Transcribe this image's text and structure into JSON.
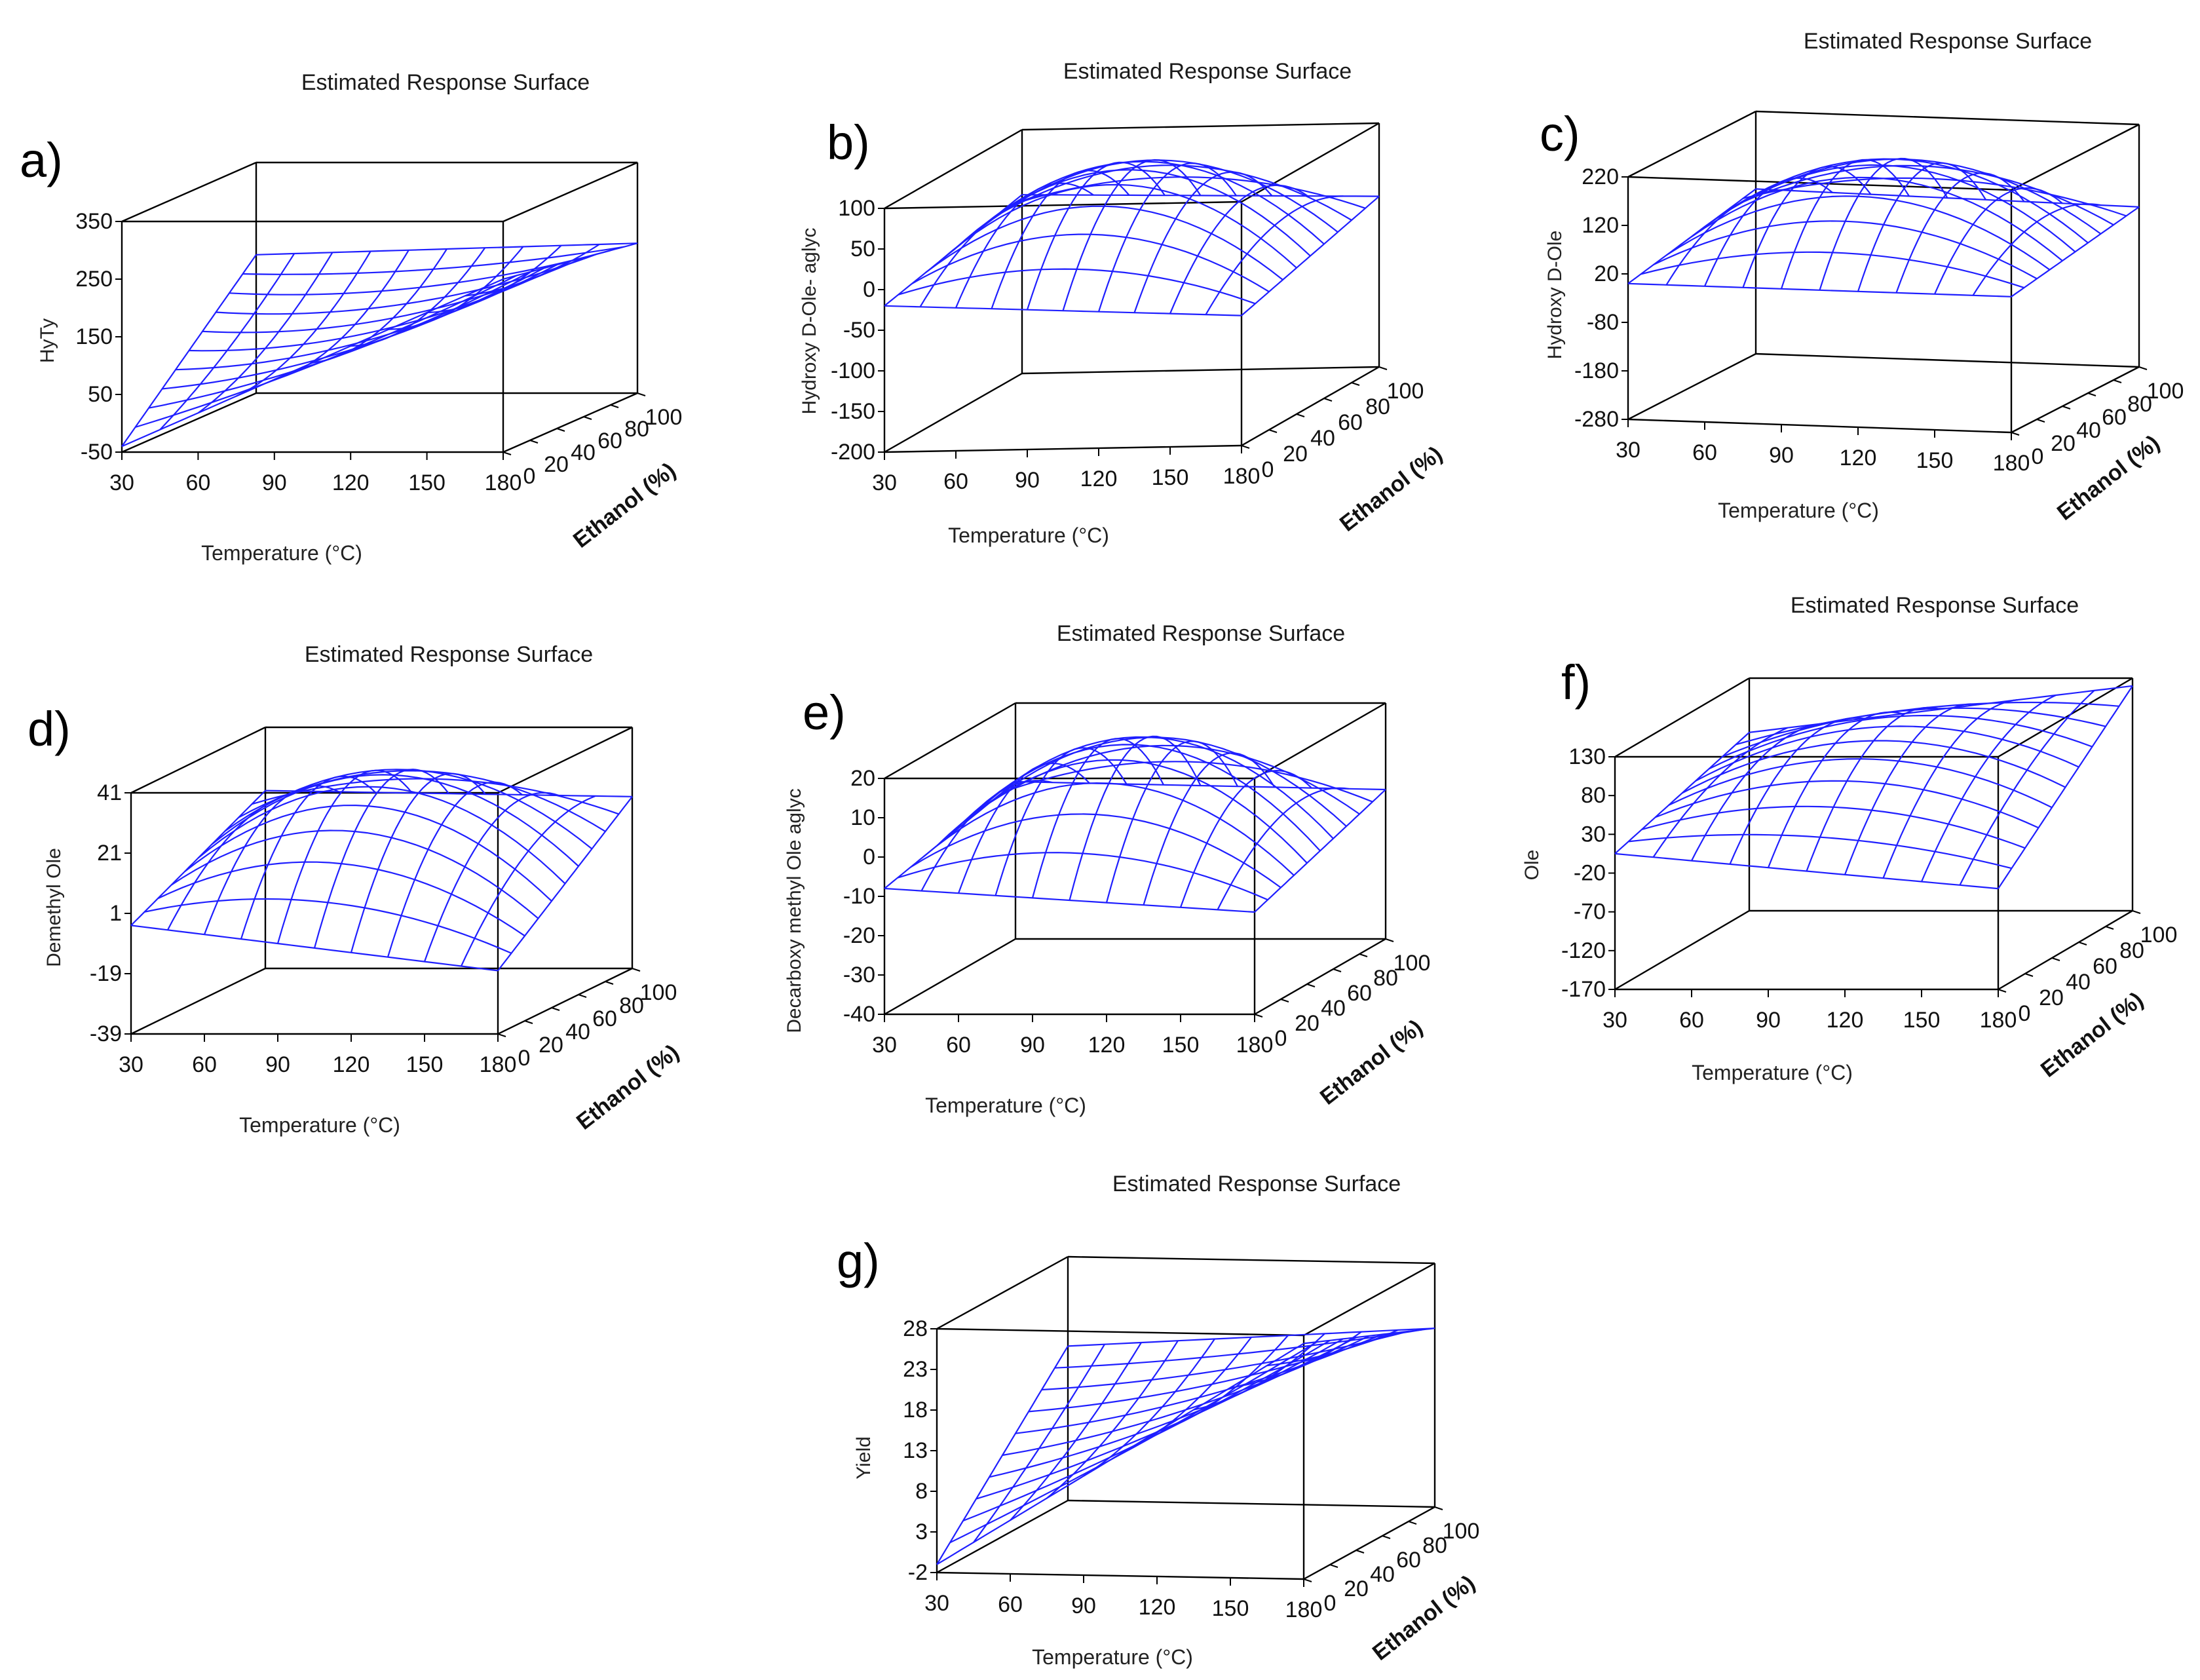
{
  "figure": {
    "background": "#ffffff",
    "mesh_color": "#1f1fff",
    "box_color": "#000000"
  },
  "chart_data": [
    {
      "type": "surface",
      "panel": "a)",
      "title": "Estimated Response Surface",
      "xlabel": "Temperature (°C)",
      "ylabel": "Ethanol (%)",
      "zlabel": "HyTy",
      "xlim": [
        30,
        180
      ],
      "ylim": [
        0,
        100
      ],
      "zlim": [
        -50,
        350
      ],
      "x_ticks": [
        "30",
        "60",
        "90",
        "120",
        "150",
        "180"
      ],
      "y_ticks": [
        "0",
        "20",
        "40",
        "60",
        "80",
        "100"
      ],
      "z_ticks": [
        "-50",
        "50",
        "150",
        "250",
        "350"
      ],
      "z_estimates": {
        "front_left": -40,
        "front_right": 250,
        "back_left": 190,
        "back_right": 210,
        "center": 110
      }
    },
    {
      "type": "surface",
      "panel": "b)",
      "title": "Estimated Response Surface",
      "xlabel": "Temperature (°C)",
      "ylabel": "Ethanol (%)",
      "zlabel": "Hydroxy D-Ole- aglyc",
      "xlim": [
        30,
        180
      ],
      "ylim": [
        0,
        100
      ],
      "zlim": [
        -200,
        100
      ],
      "x_ticks": [
        "30",
        "60",
        "90",
        "120",
        "150",
        "180"
      ],
      "y_ticks": [
        "0",
        "20",
        "40",
        "60",
        "80",
        "100"
      ],
      "z_ticks": [
        "100",
        "50",
        "0",
        "-50",
        "-100",
        "-150",
        "-200"
      ],
      "z_estimates": {
        "front_left": -20,
        "front_right": -40,
        "back_left": 20,
        "back_right": 10,
        "center": 95
      }
    },
    {
      "type": "surface",
      "panel": "c)",
      "title": "Estimated Response Surface",
      "xlabel": "Temperature (°C)",
      "ylabel": "Ethanol (%)",
      "zlabel": "Hydroxy D-Ole",
      "xlim": [
        30,
        180
      ],
      "ylim": [
        0,
        100
      ],
      "zlim": [
        -280,
        220
      ],
      "x_ticks": [
        "30",
        "60",
        "90",
        "120",
        "150",
        "180"
      ],
      "y_ticks": [
        "0",
        "20",
        "40",
        "60",
        "80",
        "100"
      ],
      "z_ticks": [
        "220",
        "120",
        "20",
        "-80",
        "-180",
        "-280"
      ],
      "z_estimates": {
        "front_left": 0,
        "front_right": 0,
        "back_left": 60,
        "back_right": 50,
        "center": 190
      }
    },
    {
      "type": "surface",
      "panel": "d)",
      "title": "Estimated Response Surface",
      "xlabel": "Temperature (°C)",
      "ylabel": "Ethanol (%)",
      "zlabel": "Demethyl Ole",
      "xlim": [
        30,
        180
      ],
      "ylim": [
        0,
        100
      ],
      "zlim": [
        -39,
        41
      ],
      "x_ticks": [
        "30",
        "60",
        "90",
        "120",
        "150",
        "180"
      ],
      "y_ticks": [
        "0",
        "20",
        "40",
        "60",
        "80",
        "100"
      ],
      "z_ticks": [
        "41",
        "21",
        "1",
        "-19",
        "-39"
      ],
      "z_estimates": {
        "front_left": -3,
        "front_right": -18,
        "back_left": 20,
        "back_right": 18,
        "center": 32
      }
    },
    {
      "type": "surface",
      "panel": "e)",
      "title": "Estimated Response Surface",
      "xlabel": "Temperature (°C)",
      "ylabel": "Ethanol (%)",
      "zlabel": "Decarboxy methyl  Ole aglyc",
      "xlim": [
        30,
        180
      ],
      "ylim": [
        0,
        100
      ],
      "zlim": [
        -40,
        20
      ],
      "x_ticks": [
        "30",
        "60",
        "90",
        "120",
        "150",
        "180"
      ],
      "y_ticks": [
        "0",
        "20",
        "40",
        "60",
        "80",
        "100"
      ],
      "z_ticks": [
        "20",
        "10",
        "0",
        "-10",
        "-20",
        "-30",
        "-40"
      ],
      "z_estimates": {
        "front_left": -8,
        "front_right": -14,
        "back_left": 0,
        "back_right": -2,
        "center": 19
      }
    },
    {
      "type": "surface",
      "panel": "f)",
      "title": "Estimated Response Surface",
      "xlabel": "Temperature (°C)",
      "ylabel": "Ethanol (%)",
      "zlabel": "Ole",
      "xlim": [
        30,
        180
      ],
      "ylim": [
        0,
        100
      ],
      "zlim": [
        -170,
        130
      ],
      "x_ticks": [
        "30",
        "60",
        "90",
        "120",
        "150",
        "180"
      ],
      "y_ticks": [
        "0",
        "20",
        "40",
        "60",
        "80",
        "100"
      ],
      "z_ticks": [
        "130",
        "80",
        "30",
        "-20",
        "-70",
        "-120",
        "-170"
      ],
      "z_estimates": {
        "front_left": 5,
        "front_right": -40,
        "back_left": 60,
        "back_right": 120,
        "center": 100
      }
    },
    {
      "type": "surface",
      "panel": "g)",
      "title": "Estimated Response Surface",
      "xlabel": "Temperature (°C)",
      "ylabel": "Ethanol (%)",
      "zlabel": "Yield",
      "xlim": [
        30,
        180
      ],
      "ylim": [
        0,
        100
      ],
      "zlim": [
        -2,
        28
      ],
      "x_ticks": [
        "30",
        "60",
        "90",
        "120",
        "150",
        "180"
      ],
      "y_ticks": [
        "0",
        "20",
        "40",
        "60",
        "80",
        "100"
      ],
      "z_ticks": [
        "28",
        "23",
        "18",
        "13",
        "8",
        "3",
        "-2"
      ],
      "z_estimates": {
        "front_left": -1,
        "front_right": 27,
        "back_left": 17,
        "back_right": 20,
        "center": 14
      }
    }
  ]
}
